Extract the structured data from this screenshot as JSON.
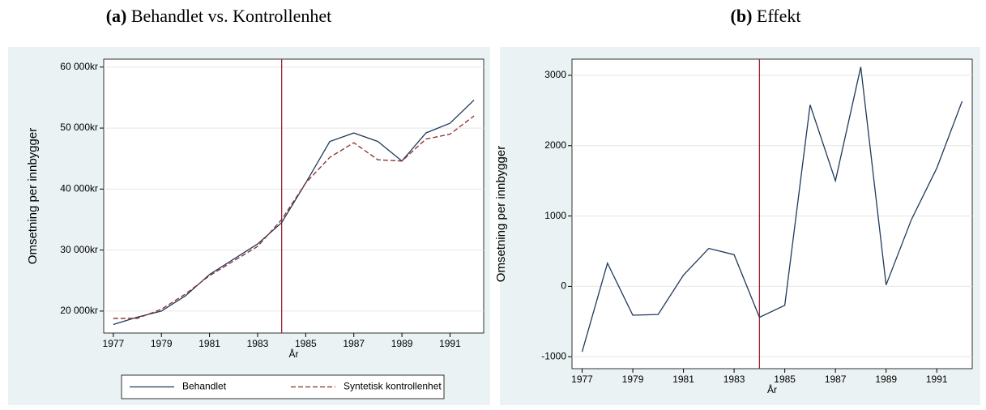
{
  "chart_data": [
    {
      "type": "line",
      "label": "(a)",
      "title": "Behandlet vs. Kontrollenhet",
      "x": [
        1977,
        1978,
        1979,
        1980,
        1981,
        1982,
        1983,
        1984,
        1985,
        1986,
        1987,
        1988,
        1989,
        1990,
        1991,
        1992
      ],
      "series": [
        {
          "name": "Behandlet",
          "color": "#1f3a5a",
          "dash": "solid",
          "values": [
            17800,
            19000,
            20000,
            22500,
            26000,
            28500,
            31000,
            34500,
            41000,
            47800,
            49200,
            47800,
            44600,
            49200,
            50800,
            54600
          ]
        },
        {
          "name": "Syntetisk kontrollenhet",
          "color": "#8b2a2a",
          "dash": "dashed",
          "values": [
            18800,
            18800,
            20300,
            22800,
            25800,
            28200,
            30600,
            35000,
            41000,
            45200,
            47600,
            44800,
            44600,
            48200,
            49000,
            52000
          ]
        }
      ],
      "xlabel": "År",
      "ylabel": "Omsetning per innbygger",
      "xlim": [
        1976.6,
        1992.4
      ],
      "xticks": [
        1977,
        1979,
        1981,
        1983,
        1985,
        1987,
        1989,
        1991
      ],
      "ylim": [
        16400,
        61300
      ],
      "yticks": [
        {
          "value": 20000,
          "label": "20 000kr"
        },
        {
          "value": 30000,
          "label": "30 000kr"
        },
        {
          "value": 40000,
          "label": "40 000kr"
        },
        {
          "value": 50000,
          "label": "50 000kr"
        },
        {
          "value": 60000,
          "label": "60 000kr"
        }
      ],
      "vline": 1984,
      "vline_color": "#9b2335",
      "grid": true,
      "legend": "bottom"
    },
    {
      "type": "line",
      "label": "(b)",
      "title": "Effekt",
      "x": [
        1977,
        1978,
        1979,
        1980,
        1981,
        1982,
        1983,
        1984,
        1985,
        1986,
        1987,
        1988,
        1989,
        1990,
        1991,
        1992
      ],
      "series": [
        {
          "color": "#1f3a5a",
          "dash": "solid",
          "values": [
            -930,
            330,
            -410,
            -400,
            160,
            540,
            450,
            -440,
            -270,
            2580,
            1500,
            3120,
            20,
            950,
            1680,
            2630
          ]
        }
      ],
      "xlabel": "År",
      "ylabel": "Omsetning per innbygger",
      "xlim": [
        1976.6,
        1992.4
      ],
      "xticks": [
        1977,
        1979,
        1981,
        1983,
        1985,
        1987,
        1989,
        1991
      ],
      "ylim": [
        -1170,
        3230
      ],
      "yticks": [
        -1000,
        0,
        1000,
        2000,
        3000
      ],
      "vline": 1984,
      "vline_color": "#9b2335",
      "grid": true
    }
  ]
}
